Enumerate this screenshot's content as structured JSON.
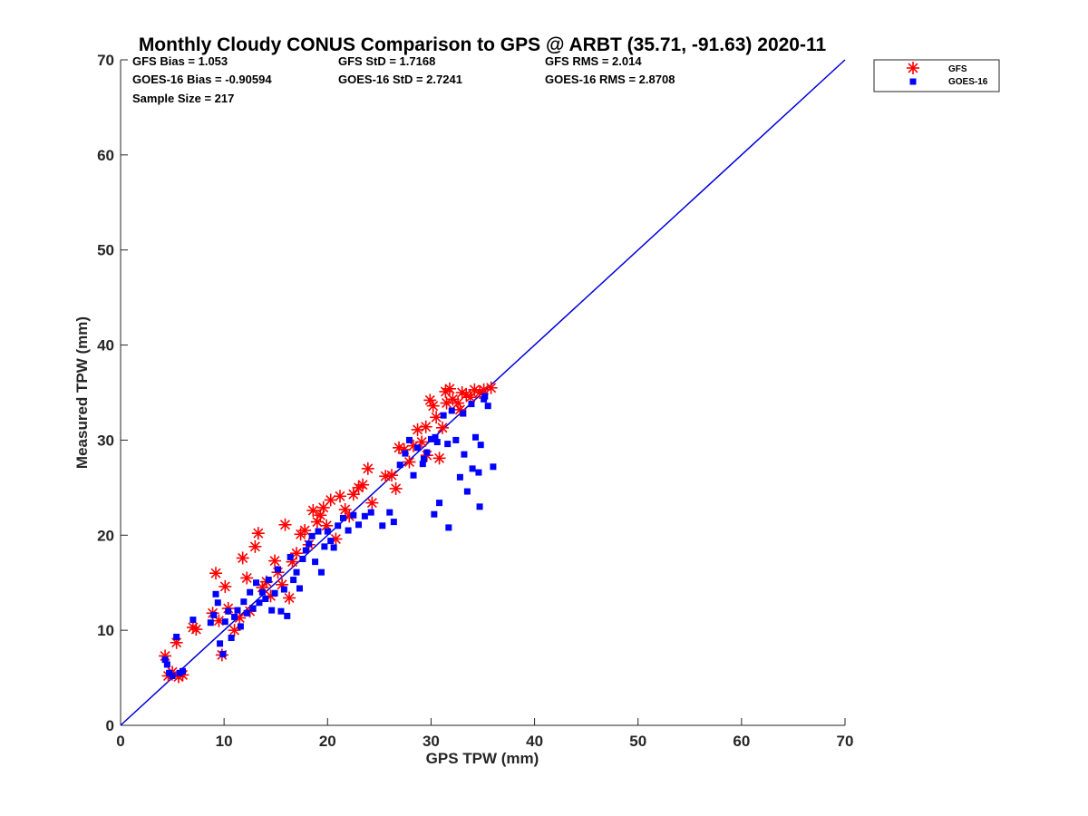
{
  "chart_data": {
    "type": "scatter",
    "title": "Monthly Cloudy CONUS Comparison to GPS @ ARBT (35.71, -91.63) 2020-11",
    "xlabel": "GPS TPW (mm)",
    "ylabel": "Measured TPW (mm)",
    "xlim": [
      0,
      70
    ],
    "ylim": [
      0,
      70
    ],
    "xticks": [
      "0",
      "10",
      "20",
      "30",
      "40",
      "50",
      "60",
      "70"
    ],
    "yticks": [
      "0",
      "10",
      "20",
      "30",
      "40",
      "50",
      "60",
      "70"
    ],
    "grid": false,
    "legend_placement": "top-right outside",
    "stats": [
      "GFS Bias = 1.053",
      "GFS StD = 1.7168",
      "GFS RMS = 2.014",
      "GOES-16 Bias = -0.90594",
      "GOES-16 StD = 2.7241",
      "GOES-16 RMS = 2.8708",
      "Sample Size = 217"
    ],
    "reference_line": {
      "x": [
        0,
        70
      ],
      "y": [
        0,
        70
      ],
      "color": "#0000dd"
    },
    "series": [
      {
        "name": "GFS",
        "marker": "asterisk",
        "color": "#ff0000",
        "points": [
          [
            4.3,
            7.3
          ],
          [
            4.6,
            5.2
          ],
          [
            5.0,
            5.6
          ],
          [
            5.4,
            8.7
          ],
          [
            5.6,
            5.1
          ],
          [
            6.0,
            5.3
          ],
          [
            7.0,
            10.3
          ],
          [
            7.3,
            10.1
          ],
          [
            8.9,
            11.8
          ],
          [
            9.2,
            16.0
          ],
          [
            9.5,
            11.0
          ],
          [
            9.8,
            7.4
          ],
          [
            10.1,
            14.6
          ],
          [
            10.4,
            12.3
          ],
          [
            11.0,
            10.0
          ],
          [
            11.5,
            11.3
          ],
          [
            11.8,
            17.6
          ],
          [
            12.2,
            15.5
          ],
          [
            12.5,
            12.0
          ],
          [
            13.0,
            18.8
          ],
          [
            13.3,
            20.2
          ],
          [
            13.7,
            14.5
          ],
          [
            14.1,
            15.1
          ],
          [
            14.5,
            13.6
          ],
          [
            14.9,
            17.3
          ],
          [
            15.2,
            16.1
          ],
          [
            15.6,
            14.8
          ],
          [
            15.9,
            21.1
          ],
          [
            16.3,
            13.4
          ],
          [
            16.6,
            17.2
          ],
          [
            17.0,
            18.1
          ],
          [
            17.4,
            20.1
          ],
          [
            17.8,
            20.5
          ],
          [
            18.2,
            19.0
          ],
          [
            18.6,
            22.6
          ],
          [
            19.0,
            21.4
          ],
          [
            19.3,
            22.1
          ],
          [
            19.6,
            22.9
          ],
          [
            19.9,
            21.0
          ],
          [
            20.3,
            23.7
          ],
          [
            20.8,
            19.6
          ],
          [
            21.2,
            24.1
          ],
          [
            21.7,
            22.7
          ],
          [
            22.1,
            22.0
          ],
          [
            22.5,
            24.3
          ],
          [
            23.0,
            25.0
          ],
          [
            23.4,
            25.3
          ],
          [
            23.9,
            27.0
          ],
          [
            24.3,
            23.4
          ],
          [
            25.6,
            26.2
          ],
          [
            26.2,
            26.3
          ],
          [
            26.6,
            24.9
          ],
          [
            26.9,
            29.2
          ],
          [
            27.4,
            29.0
          ],
          [
            27.9,
            27.7
          ],
          [
            28.3,
            29.4
          ],
          [
            28.7,
            31.1
          ],
          [
            29.1,
            29.8
          ],
          [
            29.5,
            31.4
          ],
          [
            29.9,
            34.2
          ],
          [
            30.2,
            33.6
          ],
          [
            30.5,
            32.4
          ],
          [
            30.8,
            28.1
          ],
          [
            31.1,
            31.3
          ],
          [
            31.4,
            35.1
          ],
          [
            31.8,
            35.4
          ],
          [
            32.1,
            34.3
          ],
          [
            32.6,
            33.9
          ],
          [
            33.0,
            35.0
          ],
          [
            33.4,
            34.8
          ],
          [
            33.8,
            34.5
          ],
          [
            34.2,
            35.3
          ],
          [
            34.7,
            35.0
          ],
          [
            35.1,
            35.3
          ],
          [
            35.8,
            35.5
          ],
          [
            29.6,
            28.4
          ],
          [
            31.5,
            33.9
          ],
          [
            32.8,
            33.2
          ]
        ]
      },
      {
        "name": "GOES-16",
        "marker": "square",
        "color": "#0000ff",
        "points": [
          [
            4.3,
            6.9
          ],
          [
            4.5,
            6.4
          ],
          [
            4.7,
            5.5
          ],
          [
            5.0,
            5.2
          ],
          [
            5.4,
            9.3
          ],
          [
            5.7,
            5.5
          ],
          [
            6.0,
            5.7
          ],
          [
            7.0,
            11.1
          ],
          [
            8.7,
            10.8
          ],
          [
            9.0,
            11.6
          ],
          [
            9.2,
            13.8
          ],
          [
            9.4,
            12.9
          ],
          [
            9.6,
            8.6
          ],
          [
            9.9,
            7.5
          ],
          [
            10.1,
            10.9
          ],
          [
            10.4,
            12.0
          ],
          [
            10.7,
            9.2
          ],
          [
            11.0,
            11.4
          ],
          [
            11.3,
            12.1
          ],
          [
            11.6,
            10.4
          ],
          [
            11.9,
            13.0
          ],
          [
            12.2,
            11.8
          ],
          [
            12.5,
            14.0
          ],
          [
            12.8,
            12.3
          ],
          [
            13.1,
            15.0
          ],
          [
            13.4,
            12.9
          ],
          [
            13.7,
            14.0
          ],
          [
            14.0,
            13.3
          ],
          [
            14.3,
            15.3
          ],
          [
            14.6,
            12.1
          ],
          [
            14.9,
            13.9
          ],
          [
            15.2,
            16.4
          ],
          [
            15.5,
            12.0
          ],
          [
            15.8,
            14.3
          ],
          [
            16.1,
            11.5
          ],
          [
            16.4,
            17.7
          ],
          [
            16.7,
            15.3
          ],
          [
            17.0,
            16.1
          ],
          [
            17.3,
            14.4
          ],
          [
            17.6,
            17.5
          ],
          [
            17.9,
            18.4
          ],
          [
            18.2,
            19.1
          ],
          [
            18.5,
            19.9
          ],
          [
            18.8,
            17.2
          ],
          [
            19.1,
            20.4
          ],
          [
            19.4,
            16.1
          ],
          [
            19.7,
            18.8
          ],
          [
            20.0,
            20.4
          ],
          [
            20.3,
            19.4
          ],
          [
            20.6,
            18.7
          ],
          [
            21.0,
            21.0
          ],
          [
            21.5,
            21.8
          ],
          [
            22.0,
            20.5
          ],
          [
            22.5,
            22.1
          ],
          [
            23.0,
            21.1
          ],
          [
            23.6,
            22.0
          ],
          [
            24.2,
            22.4
          ],
          [
            25.3,
            21.0
          ],
          [
            26.0,
            22.4
          ],
          [
            26.4,
            21.4
          ],
          [
            27.0,
            27.4
          ],
          [
            27.5,
            28.6
          ],
          [
            27.9,
            30.0
          ],
          [
            28.3,
            26.3
          ],
          [
            28.7,
            29.2
          ],
          [
            29.2,
            27.5
          ],
          [
            29.6,
            28.7
          ],
          [
            30.0,
            30.1
          ],
          [
            30.4,
            30.3
          ],
          [
            30.8,
            23.4
          ],
          [
            31.2,
            32.6
          ],
          [
            31.6,
            29.6
          ],
          [
            32.0,
            33.1
          ],
          [
            32.4,
            30.0
          ],
          [
            32.8,
            26.1
          ],
          [
            33.1,
            32.8
          ],
          [
            33.5,
            24.6
          ],
          [
            33.9,
            33.8
          ],
          [
            34.3,
            30.3
          ],
          [
            34.7,
            23.0
          ],
          [
            35.1,
            34.3
          ],
          [
            35.5,
            33.6
          ],
          [
            36.0,
            27.2
          ],
          [
            30.3,
            22.2
          ],
          [
            31.7,
            20.8
          ],
          [
            33.2,
            28.5
          ],
          [
            34.0,
            27.0
          ],
          [
            34.6,
            26.6
          ],
          [
            34.8,
            29.5
          ],
          [
            29.3,
            28.0
          ],
          [
            30.6,
            29.8
          ],
          [
            35.2,
            34.6
          ]
        ]
      }
    ]
  }
}
